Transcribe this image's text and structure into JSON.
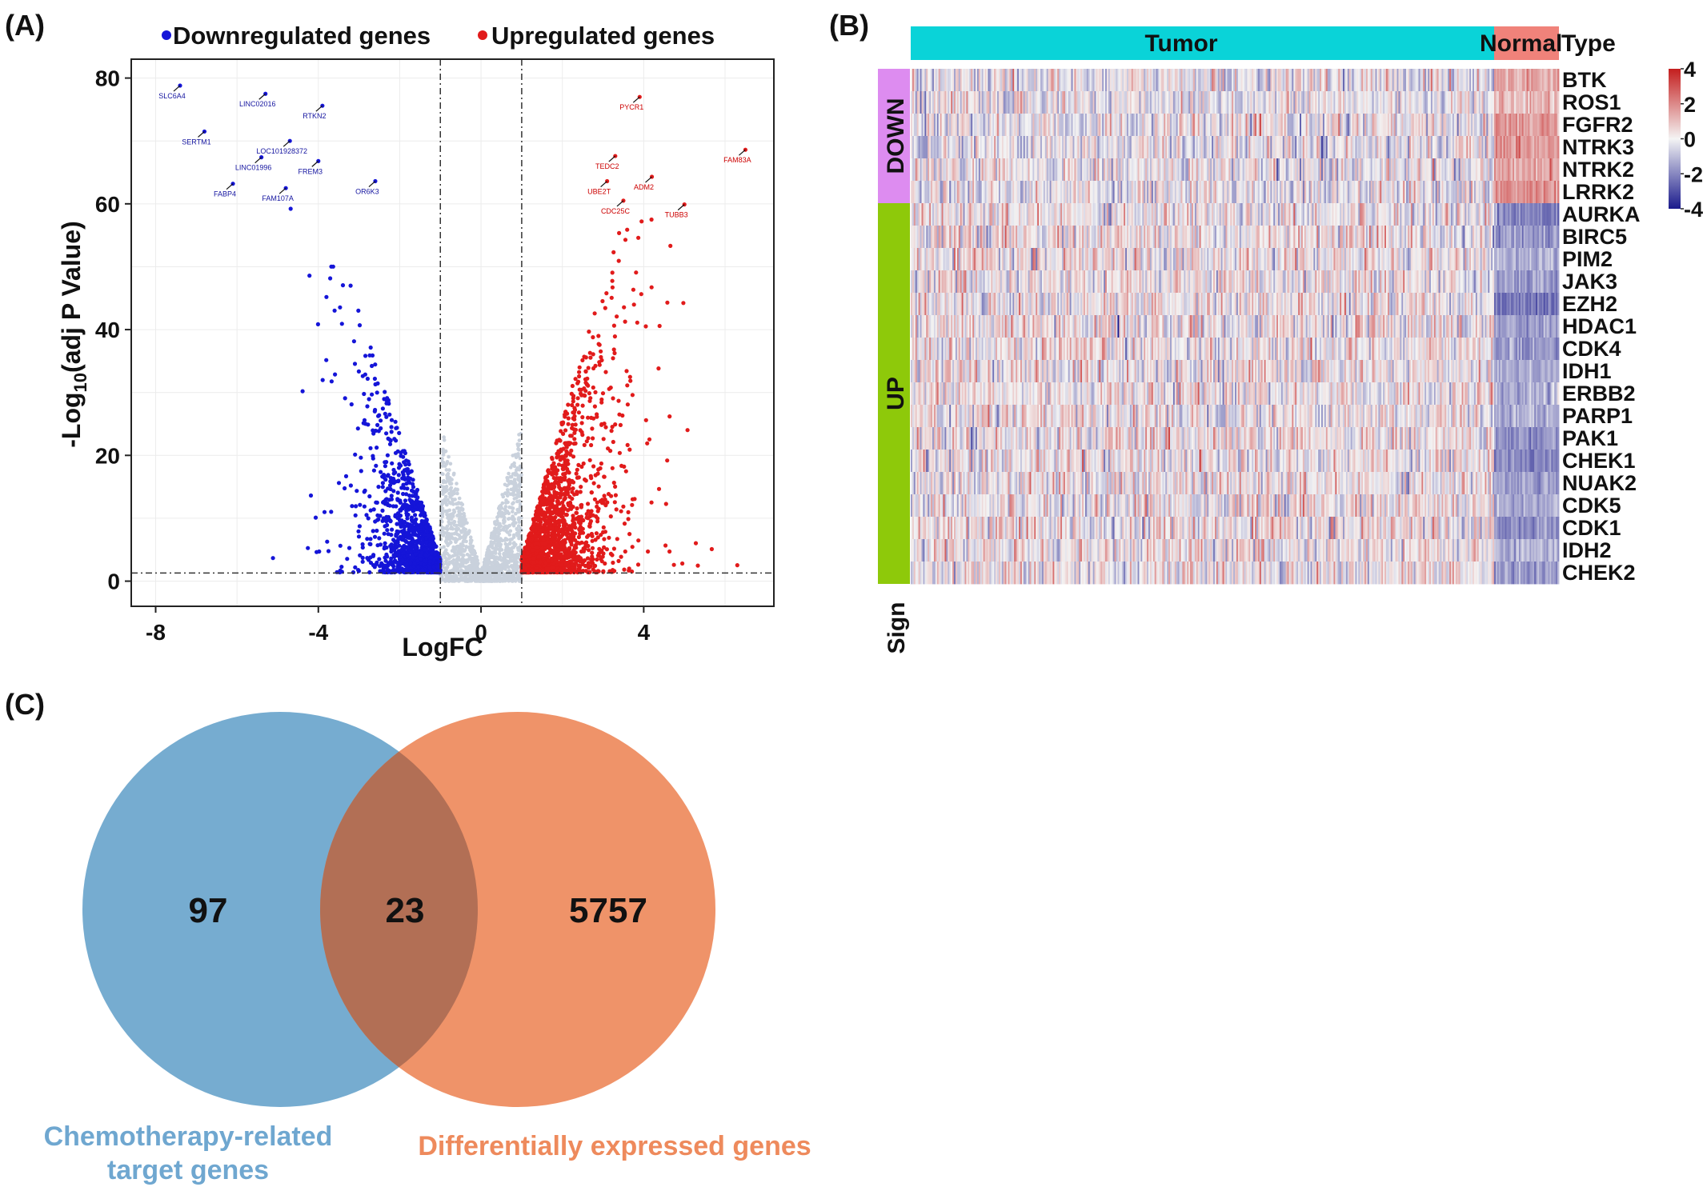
{
  "panels": {
    "a": "(A)",
    "b": "(B)",
    "c": "(C)"
  },
  "colors": {
    "down": "#1515d8",
    "up": "#e11b1b",
    "ns": "#c9d1dc",
    "tumor": "#0ad3d8",
    "normal": "#f0827a",
    "sign_down": "#dd8cf0",
    "sign_up": "#8ec90a",
    "venn_left": "#6aa5cc",
    "venn_right": "#ee8a5c",
    "venn_overlap": "#b26f55",
    "venn_left_label": "#6fa7d0",
    "venn_right_label": "#ee8a5c",
    "hm_high": "#c41e1e",
    "hm_low": "#1a1a8c"
  },
  "chart_data": [
    {
      "type": "scatter",
      "panel": "(A)",
      "title": "",
      "xlabel": "LogFC",
      "ylabel_main": "-Log",
      "ylabel_sub": "10",
      "ylabel_rest": "(adj P Value)",
      "xlim": [
        -8.6,
        7.2
      ],
      "ylim": [
        -4,
        83
      ],
      "x_ticks": [
        -8,
        -4,
        0,
        4
      ],
      "x_tick_labels": [
        "-8",
        "-4",
        "0",
        "4"
      ],
      "y_ticks": [
        0,
        20,
        40,
        60,
        80
      ],
      "y_tick_labels": [
        "0",
        "20",
        "40",
        "60",
        "80"
      ],
      "grid": true,
      "thresholds": {
        "logfc": [
          -1,
          1
        ],
        "neg_log10_p": 1.3
      },
      "legend": {
        "position": "top",
        "items": [
          {
            "label": "Downregulated genes",
            "color": "#1515d8"
          },
          {
            "label": "Upregulated genes",
            "color": "#e11b1b"
          }
        ]
      },
      "labeled_genes": [
        {
          "gene": "SLC6A4",
          "x": -7.4,
          "y": 78.8,
          "group": "down"
        },
        {
          "gene": "LINC02016",
          "x": -5.3,
          "y": 77.5,
          "group": "down"
        },
        {
          "gene": "RTKN2",
          "x": -3.9,
          "y": 75.6,
          "group": "down"
        },
        {
          "gene": "SERTM1",
          "x": -6.8,
          "y": 71.5,
          "group": "down"
        },
        {
          "gene": "LOC101928372",
          "x": -4.7,
          "y": 70.0,
          "group": "down"
        },
        {
          "gene": "LINC01996",
          "x": -5.4,
          "y": 67.4,
          "group": "down"
        },
        {
          "gene": "FREM3",
          "x": -4.0,
          "y": 66.8,
          "group": "down"
        },
        {
          "gene": "OR6K3",
          "x": -2.6,
          "y": 63.6,
          "group": "down"
        },
        {
          "gene": "FABP4",
          "x": -6.1,
          "y": 63.2,
          "group": "down"
        },
        {
          "gene": "FAM107A",
          "x": -4.8,
          "y": 62.5,
          "group": "down"
        },
        {
          "gene": "PYCR1",
          "x": 3.9,
          "y": 77.0,
          "group": "up"
        },
        {
          "gene": "FAM83A",
          "x": 6.5,
          "y": 68.6,
          "group": "up"
        },
        {
          "gene": "TEDC2",
          "x": 3.3,
          "y": 67.6,
          "group": "up"
        },
        {
          "gene": "ADM2",
          "x": 4.2,
          "y": 64.3,
          "group": "up"
        },
        {
          "gene": "UBE2T",
          "x": 3.1,
          "y": 63.6,
          "group": "up"
        },
        {
          "gene": "CDC25C",
          "x": 3.5,
          "y": 60.5,
          "group": "up"
        },
        {
          "gene": "TUBB3",
          "x": 5.0,
          "y": 59.9,
          "group": "up"
        }
      ]
    },
    {
      "type": "heatmap",
      "panel": "(B)",
      "type_header_label": "Type",
      "sign_label": "Sign",
      "groups": [
        {
          "label": "Tumor",
          "fraction": 0.9
        },
        {
          "label": "Normal",
          "fraction": 0.1
        }
      ],
      "sign_groups": [
        {
          "label": "DOWN",
          "count": 6
        },
        {
          "label": "UP",
          "count": 17
        }
      ],
      "genes": [
        "BTK",
        "ROS1",
        "FGFR2",
        "NTRK3",
        "NTRK2",
        "LRRK2",
        "AURKA",
        "BIRC5",
        "PIM2",
        "JAK3",
        "EZH2",
        "HDAC1",
        "CDK4",
        "IDH1",
        "ERBB2",
        "PARP1",
        "PAK1",
        "CHEK1",
        "NUAK2",
        "CDK5",
        "CDK1",
        "IDH2",
        "CHEK2"
      ],
      "normal_mean_by_gene": [
        1.2,
        0.8,
        1.4,
        1.3,
        1.2,
        1.5,
        -1.6,
        -1.4,
        -1.1,
        -1.3,
        -1.8,
        -1.2,
        -1.3,
        -1.0,
        -1.1,
        -1.0,
        -1.5,
        -1.6,
        -1.2,
        -1.0,
        -1.5,
        -1.0,
        -1.3
      ],
      "colorbar_ticks": [
        4,
        2,
        0,
        -2,
        -4
      ],
      "colorbar_tick_labels": [
        "4",
        "2",
        "0",
        "-2",
        "-4"
      ]
    },
    {
      "type": "venn",
      "panel": "(C)",
      "sets": [
        {
          "label_line1": "Chemotherapy-related",
          "label_line2": "target genes",
          "only": 97
        },
        {
          "label_line1": "Differentially expressed genes",
          "label_line2": "",
          "only": 5757
        }
      ],
      "overlap": 23,
      "value_labels": [
        "97",
        "23",
        "5757"
      ]
    }
  ]
}
